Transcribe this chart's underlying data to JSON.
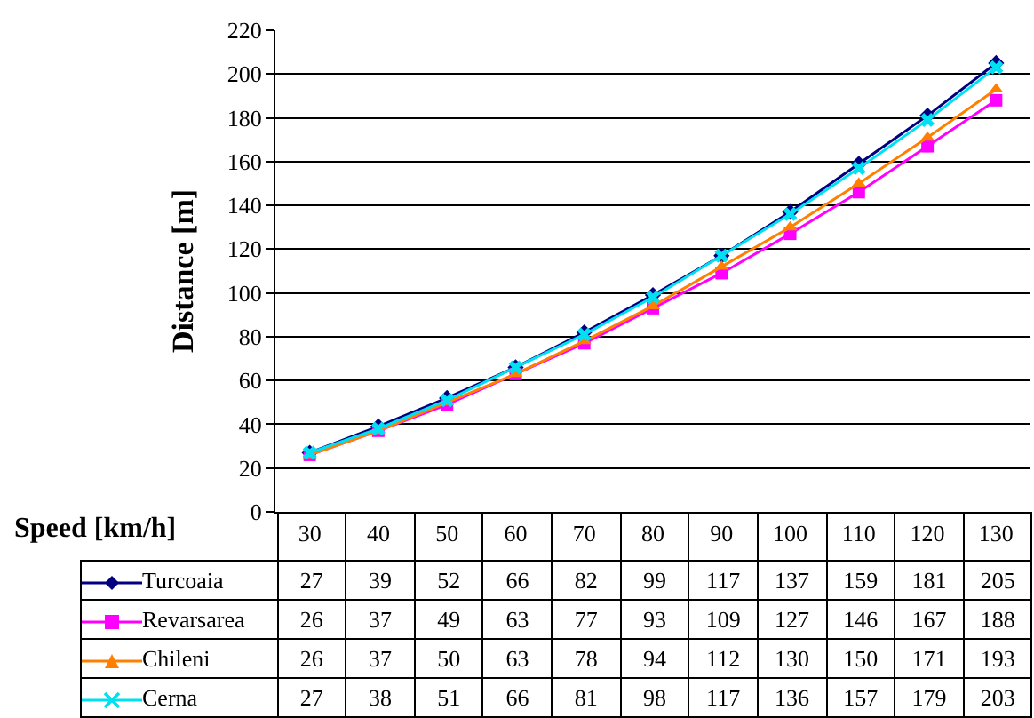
{
  "chart_data": {
    "type": "line",
    "xlabel": "Speed [km/h]",
    "ylabel": "Distance [m]",
    "categories": [
      "30",
      "40",
      "50",
      "60",
      "70",
      "80",
      "90",
      "100",
      "110",
      "120",
      "130"
    ],
    "series": [
      {
        "name": "Turcoaia",
        "color": "#000080",
        "marker": "diamond",
        "values": [
          27,
          39,
          52,
          66,
          82,
          99,
          117,
          137,
          159,
          181,
          205
        ]
      },
      {
        "name": "Revarsarea",
        "color": "#ff00ff",
        "marker": "square",
        "values": [
          26,
          37,
          49,
          63,
          77,
          93,
          109,
          127,
          146,
          167,
          188
        ]
      },
      {
        "name": "Chileni",
        "color": "#ff8000",
        "marker": "triangle",
        "values": [
          26,
          37,
          50,
          63,
          78,
          94,
          112,
          130,
          150,
          171,
          193
        ]
      },
      {
        "name": "Cerna",
        "color": "#00e0f0",
        "marker": "cross",
        "values": [
          27,
          38,
          51,
          66,
          81,
          98,
          117,
          136,
          157,
          179,
          203
        ]
      }
    ],
    "ylim": [
      0,
      220
    ],
    "yticks": [
      0,
      20,
      40,
      60,
      80,
      100,
      120,
      140,
      160,
      180,
      200,
      220
    ],
    "grid": "y",
    "legend": "bottom",
    "data_labels": true
  }
}
